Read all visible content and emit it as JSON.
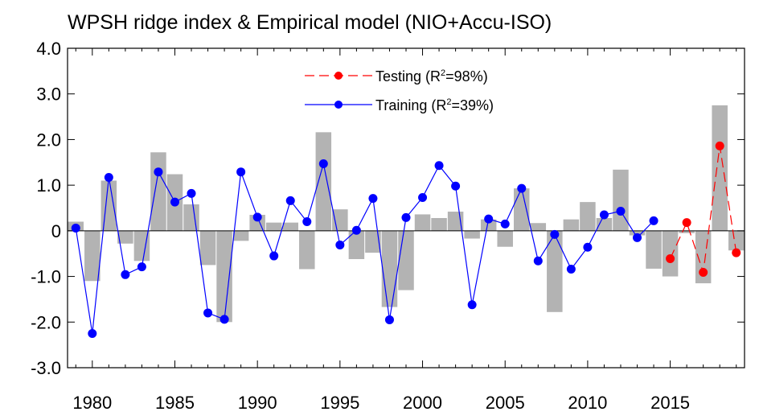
{
  "chart_data": {
    "type": "bar",
    "title": "WPSH ridge index & Empirical model (NIO+Accu-ISO)",
    "xlabel": "",
    "ylabel": "",
    "xlim": [
      1978.5,
      2019.5
    ],
    "ylim": [
      -3.0,
      4.0
    ],
    "yticks": [
      -3.0,
      -2.0,
      -1.0,
      0,
      1.0,
      2.0,
      3.0,
      4.0
    ],
    "ytick_labels": [
      "-3.0",
      "-2.0",
      "-1.0",
      "0",
      "1.0",
      "2.0",
      "3.0",
      "4.0"
    ],
    "xticks": [
      1980,
      1985,
      1990,
      1995,
      2000,
      2005,
      2010,
      2015
    ],
    "xtick_labels": [
      "1980",
      "1985",
      "1990",
      "1995",
      "2000",
      "2005",
      "2010",
      "2015"
    ],
    "grid": false,
    "legend_position": "top-center",
    "observed_bars": {
      "color": "#b3b3b3",
      "x": [
        1979,
        1980,
        1981,
        1982,
        1983,
        1984,
        1985,
        1986,
        1987,
        1988,
        1989,
        1990,
        1991,
        1992,
        1993,
        1994,
        1995,
        1996,
        1997,
        1998,
        1999,
        2000,
        2001,
        2002,
        2003,
        2004,
        2005,
        2006,
        2007,
        2008,
        2009,
        2010,
        2011,
        2012,
        2013,
        2014,
        2015,
        2016,
        2017,
        2018,
        2019
      ],
      "values": [
        0.2,
        -1.1,
        1.1,
        -0.28,
        -0.66,
        1.72,
        1.24,
        0.58,
        -0.75,
        -2.0,
        -0.22,
        0.35,
        0.18,
        0.18,
        -0.84,
        2.16,
        0.47,
        -0.62,
        -0.48,
        -1.67,
        -1.3,
        0.36,
        0.28,
        0.42,
        -0.17,
        0.25,
        -0.35,
        0.93,
        0.17,
        -1.78,
        0.25,
        0.63,
        0.28,
        1.34,
        -0.1,
        -0.83,
        -1.0,
        -0.05,
        -1.15,
        2.75,
        -0.43
      ]
    },
    "series": [
      {
        "name": "Training (R²=39%)",
        "color": "#0000ff",
        "line_style": "solid",
        "x": [
          1979,
          1980,
          1981,
          1982,
          1983,
          1984,
          1985,
          1986,
          1987,
          1988,
          1989,
          1990,
          1991,
          1992,
          1993,
          1994,
          1995,
          1996,
          1997,
          1998,
          1999,
          2000,
          2001,
          2002,
          2003,
          2004,
          2005,
          2006,
          2007,
          2008,
          2009,
          2010,
          2011,
          2012,
          2013,
          2014
        ],
        "values": [
          0.06,
          -2.25,
          1.17,
          -0.96,
          -0.79,
          1.29,
          0.63,
          0.82,
          -1.8,
          -1.94,
          1.29,
          0.3,
          -0.55,
          0.66,
          0.2,
          1.47,
          -0.31,
          0.01,
          0.71,
          -1.95,
          0.29,
          0.73,
          1.43,
          0.98,
          -1.62,
          0.26,
          0.15,
          0.93,
          -0.66,
          -0.08,
          -0.84,
          -0.36,
          0.35,
          0.43,
          -0.15,
          0.22
        ]
      },
      {
        "name": "Testing (R²=98%)",
        "color": "#ff0000",
        "line_style": "dashed",
        "x": [
          2015,
          2016,
          2017,
          2018,
          2019
        ],
        "values": [
          -0.61,
          0.18,
          -0.91,
          1.86,
          -0.48
        ]
      }
    ]
  },
  "legend": {
    "testing": {
      "label": "Testing (R",
      "sup": "2",
      "suffix": "=98%)"
    },
    "training": {
      "label": "Training (R",
      "sup": "2",
      "suffix": "=39%)"
    }
  }
}
